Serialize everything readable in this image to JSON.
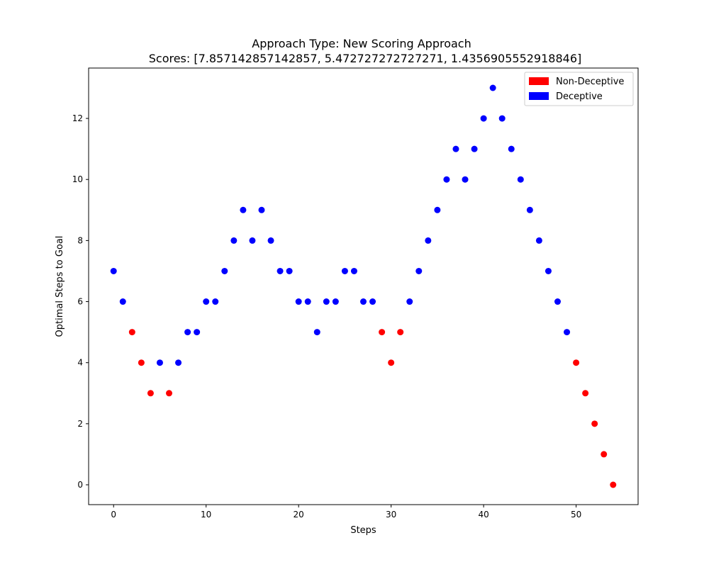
{
  "chart_data": {
    "type": "scatter",
    "title": "Approach Type: New Scoring Approach",
    "subtitle": "Scores: [7.857142857142857, 5.472727272727271, 1.4356905552918846]",
    "xlabel": "Steps",
    "ylabel": "Optimal Steps to Goal",
    "xlim": [
      -2.7,
      56.7
    ],
    "ylim": [
      -0.65,
      13.65
    ],
    "xticks": [
      0,
      10,
      20,
      30,
      40,
      50
    ],
    "yticks": [
      0,
      2,
      4,
      6,
      8,
      10,
      12
    ],
    "grid": false,
    "legend_position": "top-right",
    "legend": [
      {
        "label": "Non-Deceptive",
        "color": "#ff0000"
      },
      {
        "label": "Deceptive",
        "color": "#0000ff"
      }
    ],
    "x": [
      0,
      1,
      2,
      3,
      4,
      5,
      6,
      7,
      8,
      9,
      10,
      11,
      12,
      13,
      14,
      15,
      16,
      17,
      18,
      19,
      20,
      21,
      22,
      23,
      24,
      25,
      26,
      27,
      28,
      29,
      30,
      31,
      32,
      33,
      34,
      35,
      36,
      37,
      38,
      39,
      40,
      41,
      42,
      43,
      44,
      45,
      46,
      47,
      48,
      49,
      50,
      51,
      52,
      53,
      54
    ],
    "y": [
      7,
      6,
      5,
      4,
      3,
      4,
      3,
      4,
      5,
      5,
      6,
      6,
      7,
      8,
      9,
      8,
      9,
      8,
      7,
      7,
      6,
      6,
      5,
      6,
      6,
      7,
      7,
      6,
      6,
      5,
      4,
      5,
      6,
      7,
      8,
      9,
      10,
      11,
      10,
      11,
      12,
      13,
      12,
      11,
      10,
      9,
      8,
      7,
      6,
      5,
      4,
      3,
      2,
      1,
      0
    ],
    "categories": [
      "Deceptive",
      "Deceptive",
      "Non-Deceptive",
      "Non-Deceptive",
      "Non-Deceptive",
      "Deceptive",
      "Non-Deceptive",
      "Deceptive",
      "Deceptive",
      "Deceptive",
      "Deceptive",
      "Deceptive",
      "Deceptive",
      "Deceptive",
      "Deceptive",
      "Deceptive",
      "Deceptive",
      "Deceptive",
      "Deceptive",
      "Deceptive",
      "Deceptive",
      "Deceptive",
      "Deceptive",
      "Deceptive",
      "Deceptive",
      "Deceptive",
      "Deceptive",
      "Deceptive",
      "Deceptive",
      "Non-Deceptive",
      "Non-Deceptive",
      "Non-Deceptive",
      "Deceptive",
      "Deceptive",
      "Deceptive",
      "Deceptive",
      "Deceptive",
      "Deceptive",
      "Deceptive",
      "Deceptive",
      "Deceptive",
      "Deceptive",
      "Deceptive",
      "Deceptive",
      "Deceptive",
      "Deceptive",
      "Deceptive",
      "Deceptive",
      "Deceptive",
      "Deceptive",
      "Non-Deceptive",
      "Non-Deceptive",
      "Non-Deceptive",
      "Non-Deceptive",
      "Non-Deceptive"
    ]
  }
}
